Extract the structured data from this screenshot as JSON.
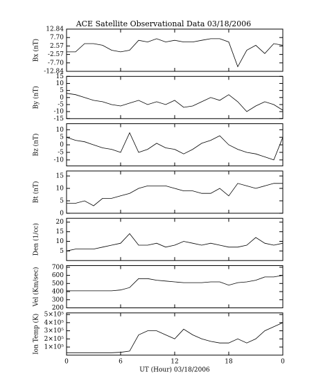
{
  "chart_data": [
    {
      "type": "line",
      "title": "ACE Satellite Observational Data   03/18/2006",
      "ylabel": "Bx (nT)",
      "color": "#000000",
      "x": [
        0,
        1,
        2,
        3,
        4,
        5,
        6,
        7,
        8,
        9,
        10,
        11,
        12,
        13,
        14,
        15,
        16,
        17,
        18,
        19,
        20,
        21,
        22,
        23,
        24
      ],
      "values": [
        -1,
        -1,
        4,
        4,
        3,
        0,
        -1,
        0,
        6,
        5,
        7,
        5,
        6,
        5,
        5,
        6,
        7,
        7,
        5,
        -10,
        0,
        3,
        -2,
        4,
        3
      ],
      "ylim": [
        -12.84,
        12.84
      ],
      "yticks": [
        -12.84,
        {
          "value": -7.7,
          "label": "-7.70"
        },
        -2.57,
        2.57,
        {
          "value": 7.7,
          "label": "7.70"
        },
        12.84
      ]
    },
    {
      "type": "line",
      "ylabel": "By (nT)",
      "color": "#000000",
      "x": [
        0,
        1,
        2,
        3,
        4,
        5,
        6,
        7,
        8,
        9,
        10,
        11,
        12,
        13,
        14,
        15,
        16,
        17,
        18,
        19,
        20,
        21,
        22,
        23,
        24
      ],
      "values": [
        3,
        2,
        0,
        -2,
        -3,
        -5,
        -6,
        -4,
        -2,
        -5,
        -3,
        -5,
        -2,
        -7,
        -6,
        -3,
        0,
        -2,
        2,
        -3,
        -10,
        -6,
        -3,
        -5,
        -9
      ],
      "ylim": [
        -15,
        15
      ],
      "yticks": [
        -15,
        -10,
        -5,
        0,
        5,
        10,
        15
      ]
    },
    {
      "type": "line",
      "ylabel": "Bz (nT)",
      "color": "#000000",
      "x": [
        0,
        1,
        2,
        3,
        4,
        5,
        6,
        7,
        8,
        9,
        10,
        11,
        12,
        13,
        14,
        15,
        16,
        17,
        18,
        19,
        20,
        21,
        22,
        23,
        24
      ],
      "values": [
        5,
        3,
        2,
        0,
        -2,
        -3,
        -5,
        8,
        -5,
        -3,
        1,
        -2,
        -3,
        -6,
        -3,
        1,
        3,
        6,
        0,
        -3,
        -5,
        -6,
        -8,
        -10,
        5
      ],
      "ylim": [
        -14,
        14
      ],
      "yticks": [
        -10,
        -5,
        0,
        5,
        10
      ]
    },
    {
      "type": "line",
      "ylabel": "Bt (nT)",
      "color": "#000000",
      "x": [
        0,
        1,
        2,
        3,
        4,
        5,
        6,
        7,
        8,
        9,
        10,
        11,
        12,
        13,
        14,
        15,
        16,
        17,
        18,
        19,
        20,
        21,
        22,
        23,
        24
      ],
      "values": [
        4,
        4,
        5,
        3,
        6,
        6,
        7,
        8,
        10,
        11,
        11,
        11,
        10,
        9,
        9,
        8,
        8,
        10,
        7,
        12,
        11,
        10,
        11,
        12,
        12
      ],
      "ylim": [
        0,
        17
      ],
      "yticks": [
        0,
        5,
        10,
        15
      ]
    },
    {
      "type": "line",
      "ylabel": "Den (1/cc)",
      "color": "#000000",
      "x": [
        0,
        1,
        2,
        3,
        4,
        5,
        6,
        7,
        8,
        9,
        10,
        11,
        12,
        13,
        14,
        15,
        16,
        17,
        18,
        19,
        20,
        21,
        22,
        23,
        24
      ],
      "values": [
        5,
        6,
        6,
        6,
        7,
        8,
        9,
        14,
        8,
        8,
        9,
        7,
        8,
        10,
        9,
        8,
        9,
        8,
        7,
        7,
        8,
        12,
        9,
        8,
        9
      ],
      "ylim": [
        0,
        22
      ],
      "yticks": [
        5,
        10,
        15,
        20
      ]
    },
    {
      "type": "line",
      "ylabel": "Vel (Km/sec)",
      "color": "#000000",
      "x": [
        0,
        1,
        2,
        3,
        4,
        5,
        6,
        7,
        8,
        9,
        10,
        11,
        12,
        13,
        14,
        15,
        16,
        17,
        18,
        19,
        20,
        21,
        22,
        23,
        24
      ],
      "values": [
        410,
        410,
        410,
        410,
        410,
        410,
        420,
        450,
        560,
        560,
        540,
        530,
        520,
        510,
        510,
        510,
        520,
        520,
        480,
        510,
        520,
        540,
        580,
        580,
        600
      ],
      "ylim": [
        200,
        720
      ],
      "yticks": [
        200,
        300,
        400,
        500,
        600,
        700
      ]
    },
    {
      "type": "line",
      "ylabel": "Ion Temp (K)",
      "xlabel": "UT (Hour)   03/18/2006",
      "color": "#000000",
      "x": [
        0,
        1,
        2,
        3,
        4,
        5,
        6,
        7,
        8,
        9,
        10,
        11,
        12,
        13,
        14,
        15,
        16,
        17,
        18,
        19,
        20,
        21,
        22,
        23,
        24
      ],
      "values": [
        30000,
        30000,
        30000,
        30000,
        30000,
        30000,
        35000,
        50000,
        250000,
        300000,
        300000,
        250000,
        200000,
        320000,
        250000,
        200000,
        170000,
        150000,
        150000,
        200000,
        150000,
        200000,
        300000,
        350000,
        400000
      ],
      "ylim": [
        0,
        520000
      ],
      "yticks": [
        {
          "value": 100000,
          "label": "1×10⁵"
        },
        {
          "value": 200000,
          "label": "2×10⁵"
        },
        {
          "value": 300000,
          "label": "3×10⁵"
        },
        {
          "value": 400000,
          "label": "4×10⁵"
        },
        {
          "value": 500000,
          "label": "5×10⁵"
        }
      ],
      "xlim": [
        0,
        24
      ],
      "xticks": [
        0,
        6,
        12,
        18,
        {
          "value": 24,
          "label": "0"
        }
      ]
    }
  ]
}
